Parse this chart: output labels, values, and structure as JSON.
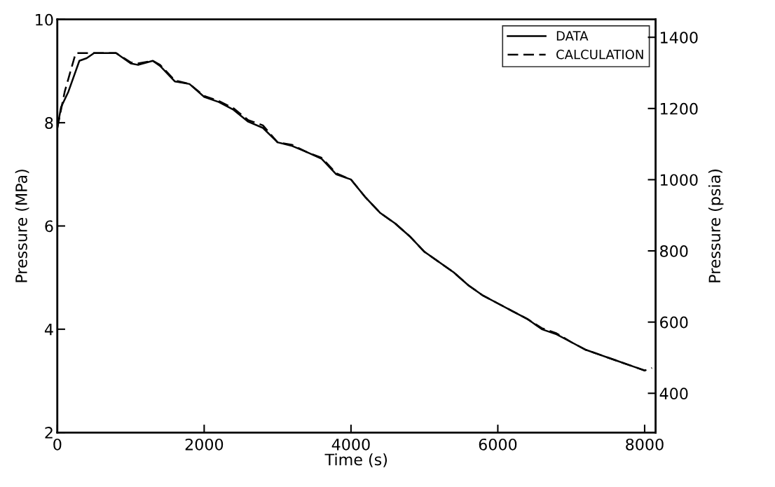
{
  "chart_data": {
    "type": "line",
    "xlabel": "Time (s)",
    "ylabel": "Pressure (MPa)",
    "y2label": "Pressure (psia)",
    "xlim": [
      0,
      8150
    ],
    "xticks": [
      0,
      2000,
      4000,
      6000,
      8000
    ],
    "ylim": [
      2,
      10
    ],
    "yticks": [
      2,
      4,
      6,
      8,
      10
    ],
    "y2lim": [
      290,
      1450
    ],
    "y2ticks": [
      400,
      600,
      800,
      1000,
      1200,
      1400
    ],
    "legend": "top right",
    "grid": false,
    "series": [
      {
        "name": "DATA",
        "color": "#000000",
        "line_style": "solid",
        "x": [
          0,
          50,
          150,
          300,
          400,
          500,
          800,
          1000,
          1100,
          1300,
          1400,
          1600,
          1800,
          2000,
          2200,
          2400,
          2600,
          2800,
          3000,
          3200,
          3400,
          3600,
          3800,
          4000,
          4200,
          4400,
          4600,
          4800,
          5000,
          5200,
          5400,
          5600,
          5800,
          6000,
          6200,
          6400,
          6600,
          6800,
          7000,
          7200,
          7400,
          7600,
          7800,
          8000
        ],
        "values": [
          7.9,
          8.3,
          8.6,
          9.2,
          9.25,
          9.35,
          9.35,
          9.15,
          9.12,
          9.2,
          9.1,
          8.8,
          8.75,
          8.5,
          8.4,
          8.25,
          8.02,
          7.9,
          7.62,
          7.55,
          7.43,
          7.3,
          7.0,
          6.9,
          6.55,
          6.25,
          6.05,
          5.8,
          5.5,
          5.3,
          5.1,
          4.85,
          4.65,
          4.5,
          4.35,
          4.2,
          4.0,
          3.9,
          3.75,
          3.6,
          3.5,
          3.4,
          3.3,
          3.2
        ]
      },
      {
        "name": "CALCULATION",
        "color": "#000000",
        "line_style": "dashed",
        "x": [
          0,
          100,
          200,
          250,
          500,
          800,
          1000,
          1100,
          1300,
          1400,
          1600,
          1800,
          2000,
          2200,
          2400,
          2600,
          2800,
          3000,
          3200,
          3400,
          3600,
          3800,
          4000,
          4200,
          4400,
          4600,
          4800,
          5000,
          5200,
          5400,
          5600,
          5800,
          6000,
          6200,
          6400,
          6600,
          6800,
          7000,
          7200,
          7400,
          7600,
          7800,
          8000,
          8100
        ],
        "values": [
          7.9,
          8.6,
          9.1,
          9.35,
          9.35,
          9.35,
          9.17,
          9.15,
          9.2,
          9.12,
          8.82,
          8.75,
          8.52,
          8.42,
          8.28,
          8.05,
          7.95,
          7.62,
          7.57,
          7.43,
          7.32,
          7.02,
          6.9,
          6.55,
          6.25,
          6.05,
          5.8,
          5.5,
          5.3,
          5.1,
          4.85,
          4.65,
          4.5,
          4.35,
          4.2,
          4.02,
          3.92,
          3.75,
          3.6,
          3.5,
          3.4,
          3.3,
          3.2,
          3.25
        ]
      }
    ]
  }
}
